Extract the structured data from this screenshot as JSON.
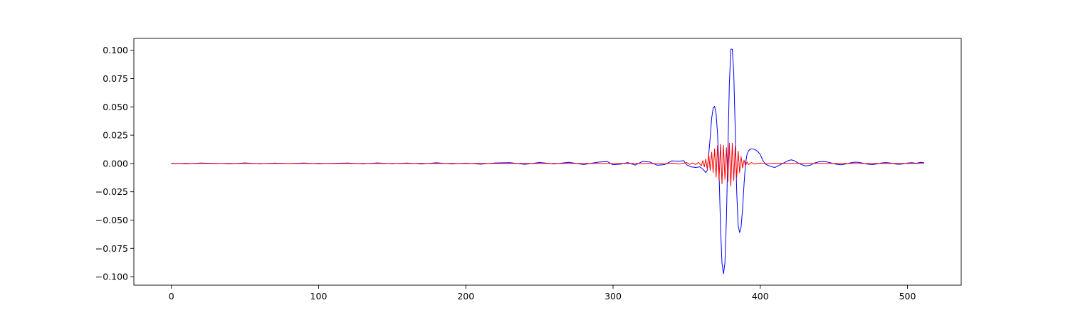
{
  "chart_data": {
    "type": "line",
    "title": "",
    "xlabel": "",
    "ylabel": "",
    "xlim": [
      -25.5,
      536.5
    ],
    "ylim": [
      -0.1075,
      0.1105
    ],
    "grid": false,
    "legend": "none",
    "x_ticks": [
      0,
      100,
      200,
      300,
      400,
      500
    ],
    "x_tick_labels": [
      "0",
      "100",
      "200",
      "300",
      "400",
      "500"
    ],
    "y_ticks": [
      0.1,
      0.075,
      0.05,
      0.025,
      0.0,
      -0.025,
      -0.05,
      -0.075,
      -0.1
    ],
    "y_tick_labels": [
      "0.100",
      "0.075",
      "0.050",
      "0.025",
      "0.000",
      "−0.025",
      "−0.050",
      "−0.075",
      "−0.100"
    ],
    "series": [
      {
        "color": "#0000ff",
        "points": [
          [
            0,
            0.0002
          ],
          [
            10,
            -0.0003
          ],
          [
            20,
            0.0004
          ],
          [
            30,
            0.0001
          ],
          [
            40,
            -0.0003
          ],
          [
            50,
            0.0005
          ],
          [
            60,
            -0.0002
          ],
          [
            70,
            0.0003
          ],
          [
            80,
            -0.0001
          ],
          [
            90,
            0.0004
          ],
          [
            100,
            -0.0003
          ],
          [
            110,
            0.0002
          ],
          [
            120,
            0.0004
          ],
          [
            130,
            -0.0003
          ],
          [
            140,
            0.0005
          ],
          [
            150,
            -0.0002
          ],
          [
            160,
            0.0004
          ],
          [
            170,
            -0.0005
          ],
          [
            180,
            0.0006
          ],
          [
            190,
            -0.0004
          ],
          [
            200,
            0.0003
          ],
          [
            210,
            -0.0006
          ],
          [
            220,
            0.0005
          ],
          [
            230,
            0.0007
          ],
          [
            240,
            -0.0008
          ],
          [
            250,
            0.0009
          ],
          [
            260,
            -0.0004
          ],
          [
            270,
            0.001
          ],
          [
            280,
            -0.0009
          ],
          [
            290,
            0.0012
          ],
          [
            296,
            0.0017
          ],
          [
            300,
            -0.0011
          ],
          [
            305,
            -0.0006
          ],
          [
            310,
            0.0008
          ],
          [
            315,
            -0.0014
          ],
          [
            320,
            0.0018
          ],
          [
            325,
            0.0013
          ],
          [
            330,
            -0.0016
          ],
          [
            335,
            -0.001
          ],
          [
            340,
            0.0023
          ],
          [
            345,
            0.002
          ],
          [
            348,
            0.0025
          ],
          [
            350,
            -0.0012
          ],
          [
            353,
            -0.003
          ],
          [
            356,
            -0.0035
          ],
          [
            359,
            -0.003
          ],
          [
            361,
            -0.005
          ],
          [
            363,
            -0.008
          ],
          [
            364,
            -0.006
          ],
          [
            365,
            0.008
          ],
          [
            366,
            0.023
          ],
          [
            367,
            0.04
          ],
          [
            368,
            0.049
          ],
          [
            369,
            0.0505
          ],
          [
            370,
            0.044
          ],
          [
            371,
            0.026
          ],
          [
            372,
            -0.008
          ],
          [
            373,
            -0.055
          ],
          [
            374,
            -0.088
          ],
          [
            375,
            -0.0975
          ],
          [
            376,
            -0.088
          ],
          [
            377,
            -0.05
          ],
          [
            378,
            0.01
          ],
          [
            379,
            0.07
          ],
          [
            380,
            0.101
          ],
          [
            381,
            0.101
          ],
          [
            382,
            0.08
          ],
          [
            383,
            0.03
          ],
          [
            384,
            -0.025
          ],
          [
            385,
            -0.055
          ],
          [
            386,
            -0.061
          ],
          [
            387,
            -0.056
          ],
          [
            388,
            -0.04
          ],
          [
            389,
            -0.018
          ],
          [
            390,
            0.0
          ],
          [
            391,
            0.008
          ],
          [
            392,
            0.011
          ],
          [
            393,
            0.0125
          ],
          [
            394,
            0.013
          ],
          [
            396,
            0.0125
          ],
          [
            398,
            0.011
          ],
          [
            400,
            0.008
          ],
          [
            402,
            0.002
          ],
          [
            404,
            -0.001
          ],
          [
            406,
            -0.002
          ],
          [
            408,
            -0.003
          ],
          [
            410,
            -0.0035
          ],
          [
            413,
            -0.0015
          ],
          [
            416,
            0.0005
          ],
          [
            419,
            0.0025
          ],
          [
            421,
            0.0032
          ],
          [
            423,
            0.0025
          ],
          [
            425,
            0.001
          ],
          [
            428,
            -0.001
          ],
          [
            431,
            -0.0022
          ],
          [
            434,
            -0.0015
          ],
          [
            437,
            0.0005
          ],
          [
            440,
            0.0015
          ],
          [
            443,
            0.0018
          ],
          [
            446,
            0.0012
          ],
          [
            449,
            0.0002
          ],
          [
            452,
            -0.0008
          ],
          [
            455,
            -0.0012
          ],
          [
            458,
            -0.0005
          ],
          [
            461,
            0.0005
          ],
          [
            464,
            0.0012
          ],
          [
            467,
            0.001
          ],
          [
            470,
            0.0002
          ],
          [
            473,
            -0.0006
          ],
          [
            476,
            -0.001
          ],
          [
            479,
            -0.0005
          ],
          [
            482,
            0.0004
          ],
          [
            485,
            0.0008
          ],
          [
            488,
            0.0005
          ],
          [
            491,
            -0.0003
          ],
          [
            494,
            -0.0008
          ],
          [
            497,
            -0.0004
          ],
          [
            500,
            0.0004
          ],
          [
            503,
            0.0007
          ],
          [
            506,
            0.0002
          ],
          [
            509,
            0.001
          ],
          [
            511,
            0.0007
          ]
        ]
      },
      {
        "color": "#ff0000",
        "points": [
          [
            0,
            0.0
          ],
          [
            100,
            0.0
          ],
          [
            200,
            0.0
          ],
          [
            300,
            0.0
          ],
          [
            320,
            0.0
          ],
          [
            335,
            -0.0003
          ],
          [
            340,
            0.0003
          ],
          [
            345,
            -0.0005
          ],
          [
            350,
            0.0008
          ],
          [
            352,
            -0.0008
          ],
          [
            354,
            0.0005
          ],
          [
            356,
            -0.001
          ],
          [
            358,
            0.001
          ],
          [
            360,
            -0.002
          ],
          [
            361,
            0.0025
          ],
          [
            362,
            -0.003
          ],
          [
            363,
            0.004
          ],
          [
            364,
            -0.005
          ],
          [
            365,
            0.008
          ],
          [
            366,
            -0.006
          ],
          [
            367,
            0.01
          ],
          [
            368,
            -0.008
          ],
          [
            369,
            0.013
          ],
          [
            370,
            -0.012
          ],
          [
            371,
            0.016
          ],
          [
            372,
            -0.015
          ],
          [
            373,
            0.017
          ],
          [
            374,
            -0.018
          ],
          [
            375,
            0.016
          ],
          [
            376,
            -0.014
          ],
          [
            377,
            0.014
          ],
          [
            378,
            -0.016
          ],
          [
            379,
            0.018
          ],
          [
            380,
            -0.02
          ],
          [
            381,
            0.018
          ],
          [
            382,
            -0.015
          ],
          [
            383,
            0.015
          ],
          [
            384,
            -0.012
          ],
          [
            385,
            0.011
          ],
          [
            386,
            -0.008
          ],
          [
            387,
            0.006
          ],
          [
            388,
            -0.004
          ],
          [
            389,
            0.003
          ],
          [
            390,
            -0.002
          ],
          [
            391,
            0.0015
          ],
          [
            392,
            -0.001
          ],
          [
            394,
            0.0008
          ],
          [
            396,
            -0.0005
          ],
          [
            400,
            0.0004
          ],
          [
            405,
            -0.0003
          ],
          [
            410,
            0.0002
          ],
          [
            420,
            0.0
          ],
          [
            511,
            0.0
          ]
        ]
      }
    ]
  }
}
